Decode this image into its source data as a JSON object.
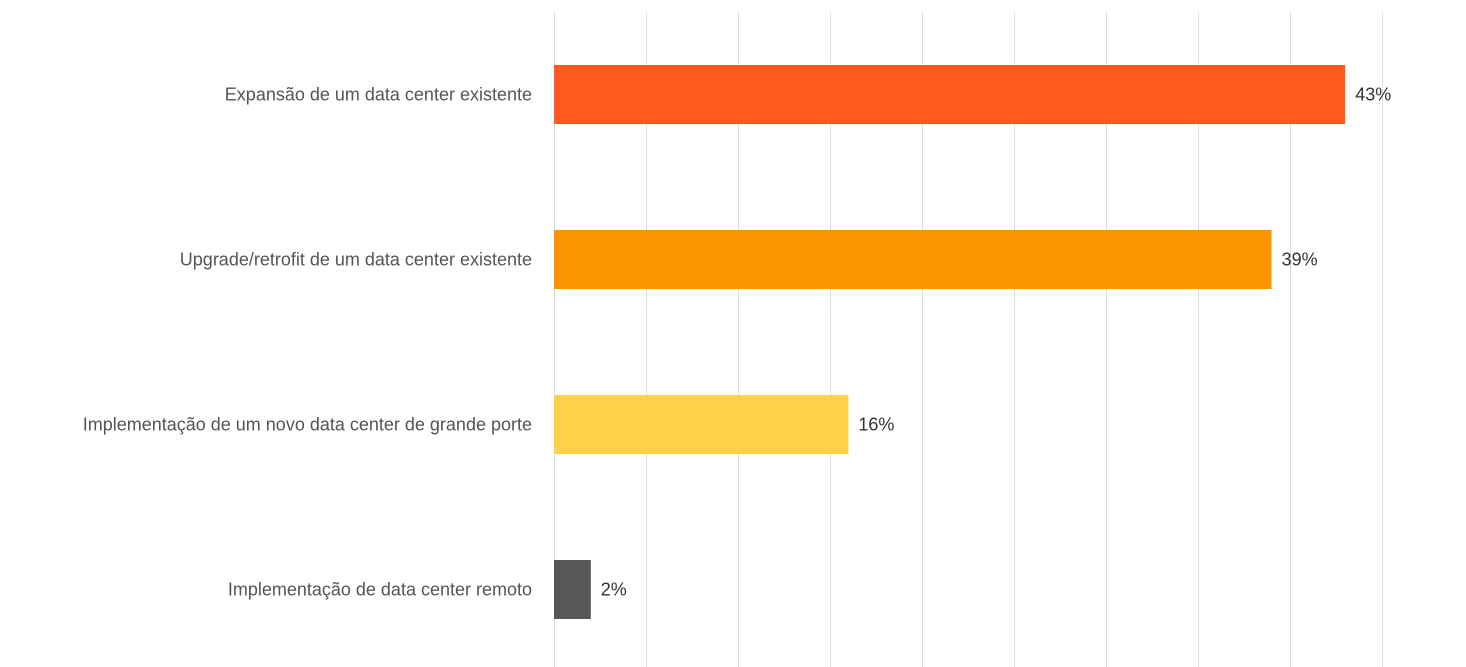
{
  "chart_data": {
    "type": "bar",
    "orientation": "horizontal",
    "title": "",
    "xlabel": "",
    "ylabel": "",
    "categories": [
      "Expansão de um data center existente",
      "Upgrade/retrofit de um data center existente",
      "Implementação de um novo data center de grande porte",
      "Implementação de data center remoto"
    ],
    "values": [
      43,
      39,
      16,
      2
    ],
    "value_labels": [
      "43%",
      "39%",
      "16%",
      "2%"
    ],
    "unit": "%",
    "colors": [
      "#ff5a1e",
      "#f99500",
      "#ffd148",
      "#575757"
    ],
    "xlim": [
      0,
      45
    ],
    "grid_step": 5,
    "grid": true,
    "legend": "none"
  }
}
